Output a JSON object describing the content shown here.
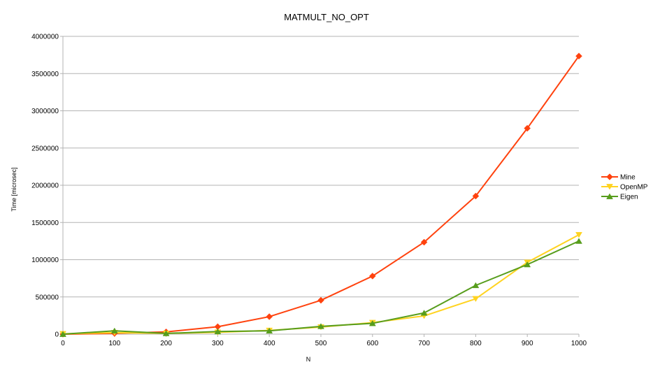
{
  "chart_data": {
    "type": "line",
    "title": "MATMULT_NO_OPT",
    "xlabel": "N",
    "ylabel": "Time [microsec]",
    "categories": [
      "0",
      "100",
      "200",
      "300",
      "400",
      "500",
      "600",
      "700",
      "800",
      "900",
      "1000"
    ],
    "y_ticks": [
      "0",
      "500000",
      "1000000",
      "1500000",
      "2000000",
      "2500000",
      "3000000",
      "3500000",
      "4000000"
    ],
    "ylim": [
      0,
      4000000
    ],
    "grid": "horizontal",
    "legend_position": "right",
    "series": [
      {
        "name": "Mine",
        "color": "#ff420e",
        "marker": "diamond",
        "values": [
          0,
          10000,
          30000,
          100000,
          235000,
          455000,
          780000,
          1235000,
          1855000,
          2765000,
          3735000
        ]
      },
      {
        "name": "OpenMP",
        "color": "#ffd320",
        "marker": "triangle-down",
        "values": [
          5000,
          20000,
          10000,
          25000,
          50000,
          95000,
          155000,
          245000,
          475000,
          965000,
          1335000
        ]
      },
      {
        "name": "Eigen",
        "color": "#579d1c",
        "marker": "triangle-up",
        "values": [
          0,
          45000,
          10000,
          35000,
          45000,
          105000,
          145000,
          285000,
          655000,
          935000,
          1250000
        ]
      }
    ]
  }
}
